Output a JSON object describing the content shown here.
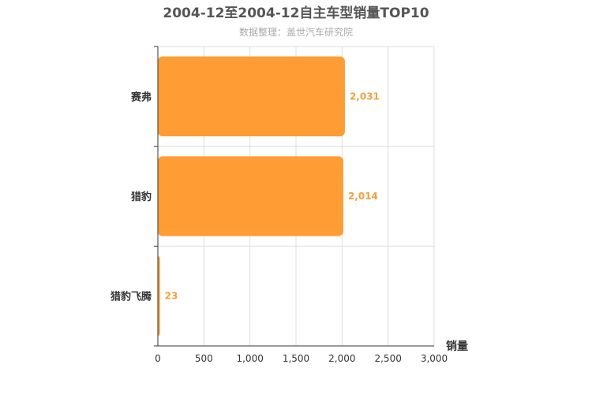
{
  "chart_data": {
    "type": "bar",
    "orientation": "horizontal",
    "title": "2004-12至2004-12自主车型销量TOP10",
    "subtitle": "数据整理：盖世汽车研究院",
    "categories": [
      "赛弗",
      "猎豹",
      "猎豹飞腾"
    ],
    "values": [
      2031,
      2014,
      23
    ],
    "value_labels": [
      "2,031",
      "2,014",
      "23"
    ],
    "xlabel": "销量",
    "ylabel": "",
    "xlim": [
      0,
      3000
    ],
    "x_ticks": [
      0,
      500,
      1000,
      1500,
      2000,
      2500,
      3000
    ],
    "x_tick_labels": [
      "0",
      "500",
      "1,000",
      "1,500",
      "2,000",
      "2,500",
      "3,000"
    ],
    "grid": true,
    "colors": {
      "bar": "#ff9c33",
      "data_label": "#f3a03b",
      "grid": "#dddddd",
      "axis": "#333333"
    }
  }
}
